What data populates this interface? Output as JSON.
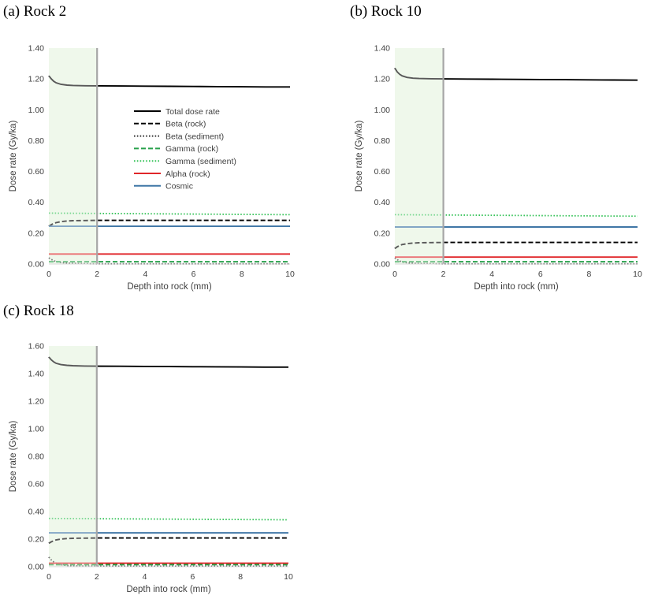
{
  "chart_data": [
    {
      "type": "line",
      "title": "(a) Rock 2",
      "xlabel": "Depth into rock (mm)",
      "ylabel": "Dose rate (Gy/ka)",
      "xlim": [
        0,
        10
      ],
      "ylim": [
        0,
        1.4
      ],
      "xticks": [
        "0",
        "2",
        "4",
        "6",
        "8",
        "10"
      ],
      "yticks": [
        "0.00",
        "0.20",
        "0.40",
        "0.60",
        "0.80",
        "1.00",
        "1.20",
        "1.40"
      ],
      "grid": false,
      "legend_position": "center",
      "shaded_region": [
        0,
        2
      ],
      "vertical_line_x": 2,
      "series": [
        {
          "name": "Total dose rate",
          "color": "#000000",
          "style": "solid",
          "x": [
            0,
            0.1,
            0.2,
            0.3,
            0.5,
            0.75,
            1,
            1.5,
            2,
            3,
            4,
            5,
            6,
            7,
            8,
            9,
            10
          ],
          "y": [
            1.22,
            1.2,
            1.185,
            1.175,
            1.165,
            1.16,
            1.158,
            1.156,
            1.155,
            1.154,
            1.153,
            1.152,
            1.151,
            1.15,
            1.149,
            1.148,
            1.148
          ]
        },
        {
          "name": "Beta (rock)",
          "color": "#000000",
          "style": "dash",
          "x": [
            0,
            0.1,
            0.2,
            0.3,
            0.5,
            0.75,
            1,
            1.5,
            2,
            3,
            4,
            5,
            6,
            7,
            8,
            9,
            10
          ],
          "y": [
            0.245,
            0.255,
            0.263,
            0.268,
            0.275,
            0.279,
            0.281,
            0.282,
            0.283,
            0.283,
            0.283,
            0.283,
            0.283,
            0.283,
            0.283,
            0.283,
            0.283
          ]
        },
        {
          "name": "Beta (sediment)",
          "color": "#333333",
          "style": "dot",
          "x": [
            0,
            0.1,
            0.2,
            0.3,
            0.5,
            0.75,
            1,
            1.5,
            2,
            3,
            4,
            5,
            6,
            7,
            8,
            9,
            10
          ],
          "y": [
            0.04,
            0.03,
            0.022,
            0.016,
            0.01,
            0.006,
            0.004,
            0.002,
            0.001,
            0.001,
            0.001,
            0.001,
            0.001,
            0.001,
            0.001,
            0.001,
            0.001
          ]
        },
        {
          "name": "Gamma (rock)",
          "color": "#27a04b",
          "style": "dash",
          "x": [
            0,
            10
          ],
          "y": [
            0.015,
            0.015
          ]
        },
        {
          "name": "Gamma (sediment)",
          "color": "#35c258",
          "style": "dot",
          "x": [
            0,
            10
          ],
          "y": [
            0.33,
            0.32
          ]
        },
        {
          "name": "Alpha (rock)",
          "color": "#e0262a",
          "style": "solid",
          "x": [
            0,
            10
          ],
          "y": [
            0.065,
            0.065
          ]
        },
        {
          "name": "Cosmic",
          "color": "#3f76a6",
          "style": "solid",
          "x": [
            0,
            10
          ],
          "y": [
            0.245,
            0.245
          ]
        }
      ]
    },
    {
      "type": "line",
      "title": "(b) Rock 10",
      "xlabel": "Depth into rock (mm)",
      "ylabel": "Dose rate (Gy/ka)",
      "xlim": [
        0,
        10
      ],
      "ylim": [
        0,
        1.4
      ],
      "xticks": [
        "0",
        "2",
        "4",
        "6",
        "8",
        "10"
      ],
      "yticks": [
        "0.00",
        "0.20",
        "0.40",
        "0.60",
        "0.80",
        "1.00",
        "1.20",
        "1.40"
      ],
      "grid": false,
      "shaded_region": [
        0,
        2
      ],
      "vertical_line_x": 2,
      "series": [
        {
          "color": "#000000",
          "style": "solid",
          "x": [
            0,
            0.1,
            0.2,
            0.3,
            0.5,
            0.75,
            1,
            1.5,
            2,
            3,
            4,
            5,
            6,
            7,
            8,
            9,
            10
          ],
          "y": [
            1.27,
            1.245,
            1.23,
            1.22,
            1.21,
            1.205,
            1.203,
            1.201,
            1.2,
            1.199,
            1.198,
            1.197,
            1.196,
            1.195,
            1.194,
            1.193,
            1.192
          ]
        },
        {
          "color": "#000000",
          "style": "dash",
          "x": [
            0,
            0.1,
            0.2,
            0.3,
            0.5,
            0.75,
            1,
            1.5,
            2,
            3,
            4,
            5,
            6,
            7,
            8,
            9,
            10
          ],
          "y": [
            0.1,
            0.112,
            0.12,
            0.126,
            0.132,
            0.136,
            0.138,
            0.139,
            0.14,
            0.14,
            0.14,
            0.14,
            0.14,
            0.14,
            0.14,
            0.14,
            0.14
          ]
        },
        {
          "color": "#333333",
          "style": "dot",
          "x": [
            0,
            0.1,
            0.2,
            0.3,
            0.5,
            0.75,
            1,
            1.5,
            2,
            3,
            4,
            5,
            6,
            7,
            8,
            9,
            10
          ],
          "y": [
            0.04,
            0.028,
            0.02,
            0.014,
            0.008,
            0.005,
            0.003,
            0.002,
            0.001,
            0.001,
            0.001,
            0.001,
            0.001,
            0.001,
            0.001,
            0.001,
            0.001
          ]
        },
        {
          "color": "#27a04b",
          "style": "dash",
          "x": [
            0,
            10
          ],
          "y": [
            0.015,
            0.015
          ]
        },
        {
          "color": "#35c258",
          "style": "dot",
          "x": [
            0,
            10
          ],
          "y": [
            0.32,
            0.31
          ]
        },
        {
          "color": "#e0262a",
          "style": "solid",
          "x": [
            0,
            10
          ],
          "y": [
            0.045,
            0.045
          ]
        },
        {
          "color": "#3f76a6",
          "style": "solid",
          "x": [
            0,
            10
          ],
          "y": [
            0.24,
            0.24
          ]
        }
      ]
    },
    {
      "type": "line",
      "title": "(c) Rock 18",
      "xlabel": "Depth into rock (mm)",
      "ylabel": "Dose rate (Gy/ka)",
      "xlim": [
        0,
        10
      ],
      "ylim": [
        0,
        1.6
      ],
      "xticks": [
        "0",
        "2",
        "4",
        "6",
        "8",
        "10"
      ],
      "yticks": [
        "0.00",
        "0.20",
        "0.40",
        "0.60",
        "0.80",
        "1.00",
        "1.20",
        "1.40",
        "1.60"
      ],
      "grid": false,
      "shaded_region": [
        0,
        2
      ],
      "vertical_line_x": 2,
      "series": [
        {
          "color": "#000000",
          "style": "solid",
          "x": [
            0,
            0.1,
            0.2,
            0.3,
            0.5,
            0.75,
            1,
            1.5,
            2,
            3,
            4,
            5,
            6,
            7,
            8,
            9,
            10
          ],
          "y": [
            1.52,
            1.5,
            1.485,
            1.475,
            1.465,
            1.46,
            1.457,
            1.455,
            1.454,
            1.453,
            1.452,
            1.451,
            1.45,
            1.449,
            1.448,
            1.447,
            1.447
          ]
        },
        {
          "color": "#000000",
          "style": "dash",
          "x": [
            0,
            0.1,
            0.2,
            0.3,
            0.5,
            0.75,
            1,
            1.5,
            2,
            3,
            4,
            5,
            6,
            7,
            8,
            9,
            10
          ],
          "y": [
            0.17,
            0.18,
            0.188,
            0.194,
            0.2,
            0.204,
            0.206,
            0.207,
            0.208,
            0.208,
            0.208,
            0.208,
            0.208,
            0.208,
            0.208,
            0.208,
            0.208
          ]
        },
        {
          "color": "#333333",
          "style": "dot",
          "x": [
            0,
            0.1,
            0.2,
            0.3,
            0.5,
            0.75,
            1,
            1.5,
            2,
            3,
            4,
            5,
            6,
            7,
            8,
            9,
            10
          ],
          "y": [
            0.07,
            0.05,
            0.035,
            0.025,
            0.015,
            0.009,
            0.006,
            0.004,
            0.003,
            0.003,
            0.003,
            0.003,
            0.003,
            0.003,
            0.003,
            0.003,
            0.003
          ]
        },
        {
          "color": "#27a04b",
          "style": "dash",
          "x": [
            0,
            10
          ],
          "y": [
            0.015,
            0.015
          ]
        },
        {
          "color": "#35c258",
          "style": "dot",
          "x": [
            0,
            10
          ],
          "y": [
            0.35,
            0.34
          ]
        },
        {
          "color": "#e0262a",
          "style": "solid",
          "x": [
            0,
            10
          ],
          "y": [
            0.025,
            0.025
          ]
        },
        {
          "color": "#3f76a6",
          "style": "solid",
          "x": [
            0,
            10
          ],
          "y": [
            0.245,
            0.245
          ]
        }
      ]
    }
  ],
  "colors": {
    "shade": "#e6f4e1",
    "divider": "#a6a6a6"
  }
}
